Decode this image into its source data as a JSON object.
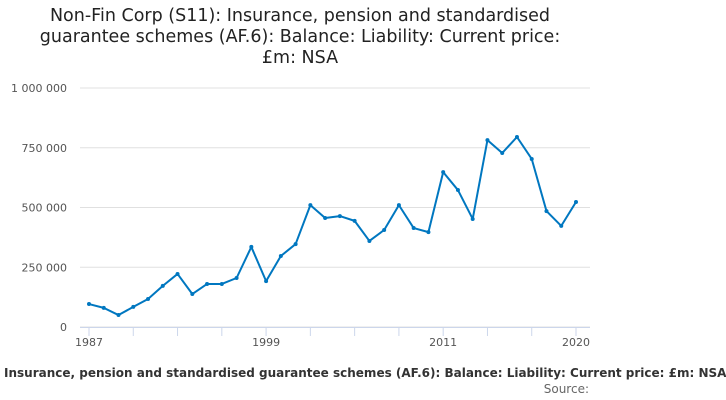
{
  "chart_data": {
    "type": "line",
    "title": "Non-Fin Corp (S11): Insurance, pension and standardised guarantee schemes (AF.6): Balance: Liability: Current price: £m: NSA",
    "title_lines": [
      "Non-Fin Corp (S11): Insurance, pension and standardised",
      "guarantee schemes (AF.6): Balance: Liability: Current price:",
      "£m: NSA"
    ],
    "xlabel": "",
    "ylabel": "",
    "ylim": [
      0,
      1000000
    ],
    "yticks": [
      0,
      250000,
      500000,
      750000,
      1000000
    ],
    "ytick_labels": [
      "0",
      "250 000",
      "500 000",
      "750 000",
      "1 000 000"
    ],
    "xtick_labels": [
      "1987",
      "1999",
      "2011",
      "2020"
    ],
    "grid": true,
    "legend_position": "bottom",
    "color": "#0077c0",
    "x": [
      1987,
      1988,
      1989,
      1990,
      1991,
      1992,
      1993,
      1994,
      1995,
      1996,
      1997,
      1998,
      1999,
      2000,
      2001,
      2002,
      2003,
      2004,
      2005,
      2006,
      2007,
      2008,
      2009,
      2010,
      2011,
      2012,
      2013,
      2014,
      2015,
      2016,
      2017,
      2018,
      2019,
      2020
    ],
    "series": [
      {
        "name": "Insurance, pension and standardised guarantee schemes (AF.6): Balance: Liability: Current price: £m: NSA",
        "values": [
          96000,
          80000,
          50000,
          84000,
          117000,
          172000,
          222000,
          138000,
          180000,
          180000,
          205000,
          335000,
          192000,
          297000,
          347000,
          510000,
          456000,
          464000,
          444000,
          360000,
          406000,
          510000,
          414000,
          397000,
          648000,
          573000,
          452000,
          782000,
          728000,
          795000,
          703000,
          485000,
          423000,
          523000
        ]
      }
    ],
    "source_label": "Source:"
  }
}
